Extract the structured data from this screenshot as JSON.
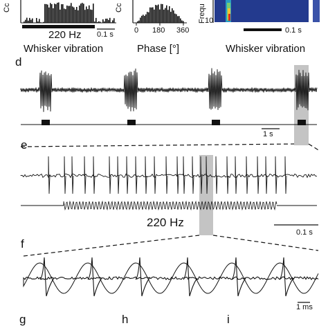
{
  "panels": {
    "a": {
      "ylabel_fragment": "Cc",
      "freq_label": "220 Hz",
      "scale_label": "0.1 s",
      "caption": "Whisker vibration"
    },
    "b": {
      "ylabel_fragment": "Cc",
      "ticks": [
        "0",
        "180",
        "360"
      ],
      "caption": "Phase [°]"
    },
    "c": {
      "ylabel_fragment": "Frequ",
      "tick_10": "10",
      "scale_label": "0.1 s",
      "caption": "Whisker vibration"
    },
    "d": {
      "label": "d",
      "scale_label": "1 s"
    },
    "e": {
      "label": "e",
      "freq_label": "220 Hz",
      "scale_label": "0.1 s"
    },
    "f": {
      "label": "f",
      "scale_label": "1 ms"
    },
    "g": {
      "label": "g"
    },
    "h": {
      "label": "h"
    },
    "i": {
      "label": "i"
    }
  },
  "colors": {
    "ink": "#111111",
    "highlight": "#c4c4c4",
    "heatmap_bg": "#233a8e"
  }
}
